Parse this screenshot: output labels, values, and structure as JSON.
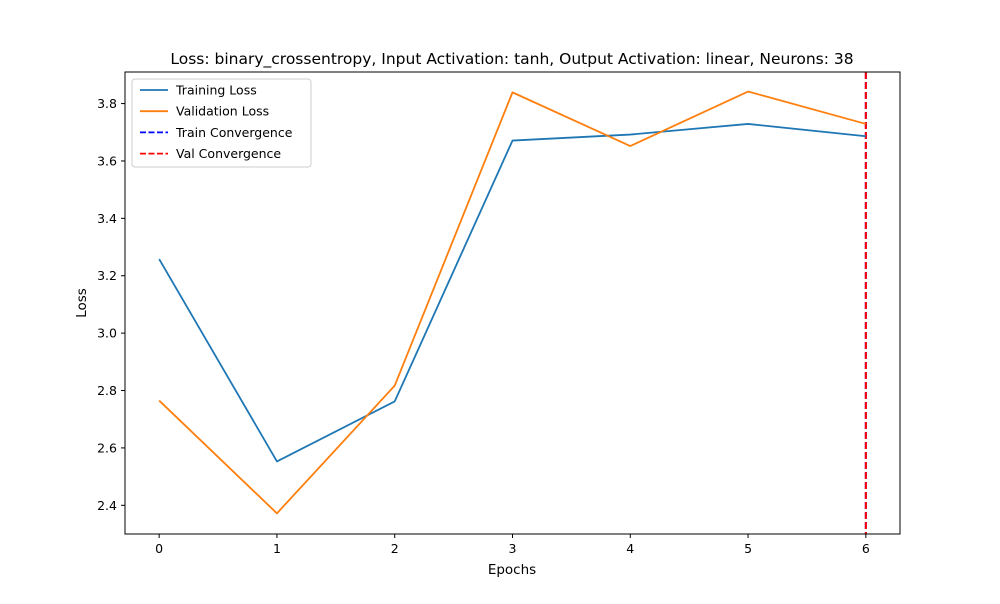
{
  "chart_data": {
    "type": "line",
    "title": "Loss: binary_crossentropy, Input Activation: tanh, Output Activation: linear, Neurons: 38",
    "xlabel": "Epochs",
    "ylabel": "Loss",
    "x": [
      0,
      1,
      2,
      3,
      4,
      5,
      6
    ],
    "xlim": [
      -0.29,
      6.29
    ],
    "ylim": [
      2.3,
      3.91
    ],
    "xticks": [
      0,
      1,
      2,
      3,
      4,
      5,
      6
    ],
    "yticks": [
      2.4,
      2.6,
      2.8,
      3.0,
      3.2,
      3.4,
      3.6,
      3.8
    ],
    "grid": false,
    "legend_position": "top-left",
    "series": [
      {
        "name": "Training Loss",
        "color": "#1f77b4",
        "style": "solid",
        "values": [
          3.258,
          2.553,
          2.762,
          3.671,
          3.692,
          3.729,
          3.686
        ]
      },
      {
        "name": "Validation Loss",
        "color": "#ff7f0e",
        "style": "solid",
        "values": [
          2.765,
          2.372,
          2.817,
          3.839,
          3.652,
          3.842,
          3.729
        ]
      }
    ],
    "vlines": [
      {
        "name": "Train Convergence",
        "color": "#0000ff",
        "style": "dashed",
        "x": 6
      },
      {
        "name": "Val Convergence",
        "color": "#ff0000",
        "style": "dashed",
        "x": 6
      }
    ]
  }
}
